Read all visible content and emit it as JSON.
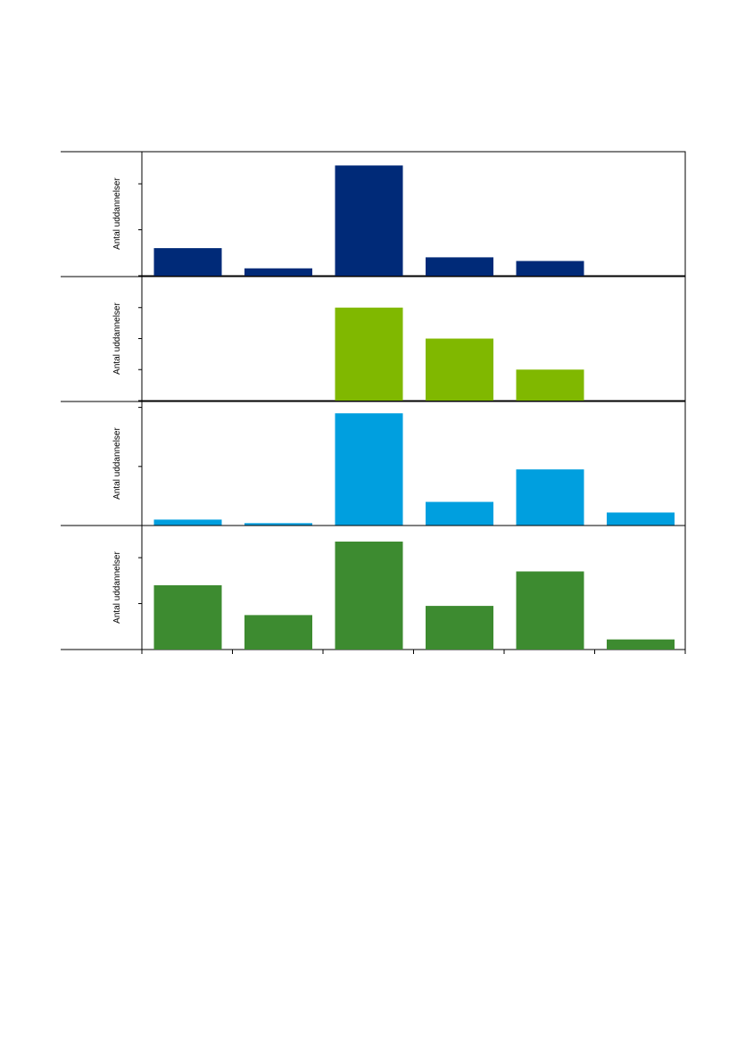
{
  "chart_data": [
    {
      "type": "bar",
      "ylabel": "Antal uddannelser",
      "color": "#002a78",
      "values": [
        6,
        1.6,
        24,
        4,
        3.2,
        0
      ],
      "ylim": [
        0,
        27
      ],
      "yticks": [
        0,
        10,
        20
      ]
    },
    {
      "type": "bar",
      "ylabel": "Antal uddannelser",
      "color": "#80b800",
      "values": [
        0,
        0,
        3,
        2,
        1,
        0
      ],
      "ylim": [
        0,
        4
      ],
      "yticks": [
        0,
        1,
        2,
        3
      ]
    },
    {
      "type": "bar",
      "ylabel": "Antal uddannelser",
      "color": "#009fdf",
      "values": [
        1,
        0.4,
        19,
        4,
        9.5,
        2.2
      ],
      "ylim": [
        0,
        21
      ],
      "yticks": [
        0,
        10,
        20
      ]
    },
    {
      "type": "bar",
      "ylabel": "Antal uddannelser",
      "color": "#3d8b30",
      "values": [
        14,
        7.5,
        23.5,
        9.5,
        17,
        2.2
      ],
      "ylim": [
        0,
        27
      ],
      "yticks": [
        0,
        10,
        20
      ]
    }
  ]
}
